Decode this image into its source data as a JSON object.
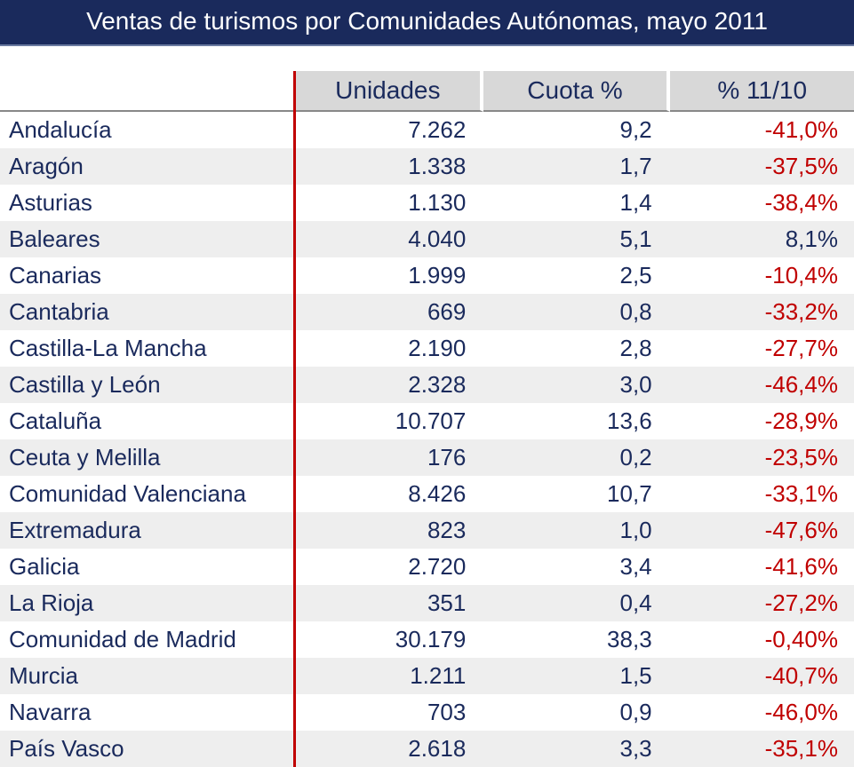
{
  "title": "Ventas de turismos por Comunidades Autónomas, mayo 2011",
  "columns": [
    "Unidades",
    "Cuota %",
    "% 11/10"
  ],
  "colors": {
    "header_bg": "#1a2a5c",
    "header_text": "#ffffff",
    "col_header_bg": "#d8d8d8",
    "col_header_text": "#1a2a5c",
    "row_alt_bg": "#eeeeee",
    "label_text": "#1a2a5c",
    "value_text": "#1a2a5c",
    "negative_text": "#c00000",
    "divider_line": "#c00000"
  },
  "typography": {
    "font_family": "Verdana",
    "title_fontsize": 28,
    "header_fontsize": 28,
    "body_fontsize": 26
  },
  "rows": [
    {
      "region": "Andalucía",
      "unidades": "7.262",
      "cuota": "9,2",
      "pct": "-41,0%",
      "neg": true
    },
    {
      "region": "Aragón",
      "unidades": "1.338",
      "cuota": "1,7",
      "pct": "-37,5%",
      "neg": true
    },
    {
      "region": "Asturias",
      "unidades": "1.130",
      "cuota": "1,4",
      "pct": "-38,4%",
      "neg": true
    },
    {
      "region": "Baleares",
      "unidades": "4.040",
      "cuota": "5,1",
      "pct": "8,1%",
      "neg": false
    },
    {
      "region": "Canarias",
      "unidades": "1.999",
      "cuota": "2,5",
      "pct": "-10,4%",
      "neg": true
    },
    {
      "region": "Cantabria",
      "unidades": "669",
      "cuota": "0,8",
      "pct": "-33,2%",
      "neg": true
    },
    {
      "region": "Castilla-La Mancha",
      "unidades": "2.190",
      "cuota": "2,8",
      "pct": "-27,7%",
      "neg": true
    },
    {
      "region": "Castilla y León",
      "unidades": "2.328",
      "cuota": "3,0",
      "pct": "-46,4%",
      "neg": true
    },
    {
      "region": "Cataluña",
      "unidades": "10.707",
      "cuota": "13,6",
      "pct": "-28,9%",
      "neg": true
    },
    {
      "region": "Ceuta y Melilla",
      "unidades": "176",
      "cuota": "0,2",
      "pct": "-23,5%",
      "neg": true
    },
    {
      "region": "Comunidad Valenciana",
      "unidades": "8.426",
      "cuota": "10,7",
      "pct": "-33,1%",
      "neg": true
    },
    {
      "region": "Extremadura",
      "unidades": "823",
      "cuota": "1,0",
      "pct": "-47,6%",
      "neg": true
    },
    {
      "region": "Galicia",
      "unidades": "2.720",
      "cuota": "3,4",
      "pct": "-41,6%",
      "neg": true
    },
    {
      "region": "La Rioja",
      "unidades": "351",
      "cuota": "0,4",
      "pct": "-27,2%",
      "neg": true
    },
    {
      "region": "Comunidad de Madrid",
      "unidades": "30.179",
      "cuota": "38,3",
      "pct": "-0,40%",
      "neg": true
    },
    {
      "region": "Murcia",
      "unidades": "1.211",
      "cuota": "1,5",
      "pct": "-40,7%",
      "neg": true
    },
    {
      "region": "Navarra",
      "unidades": "703",
      "cuota": "0,9",
      "pct": "-46,0%",
      "neg": true
    },
    {
      "region": "País Vasco",
      "unidades": "2.618",
      "cuota": "3,3",
      "pct": "-35,1%",
      "neg": true
    }
  ]
}
